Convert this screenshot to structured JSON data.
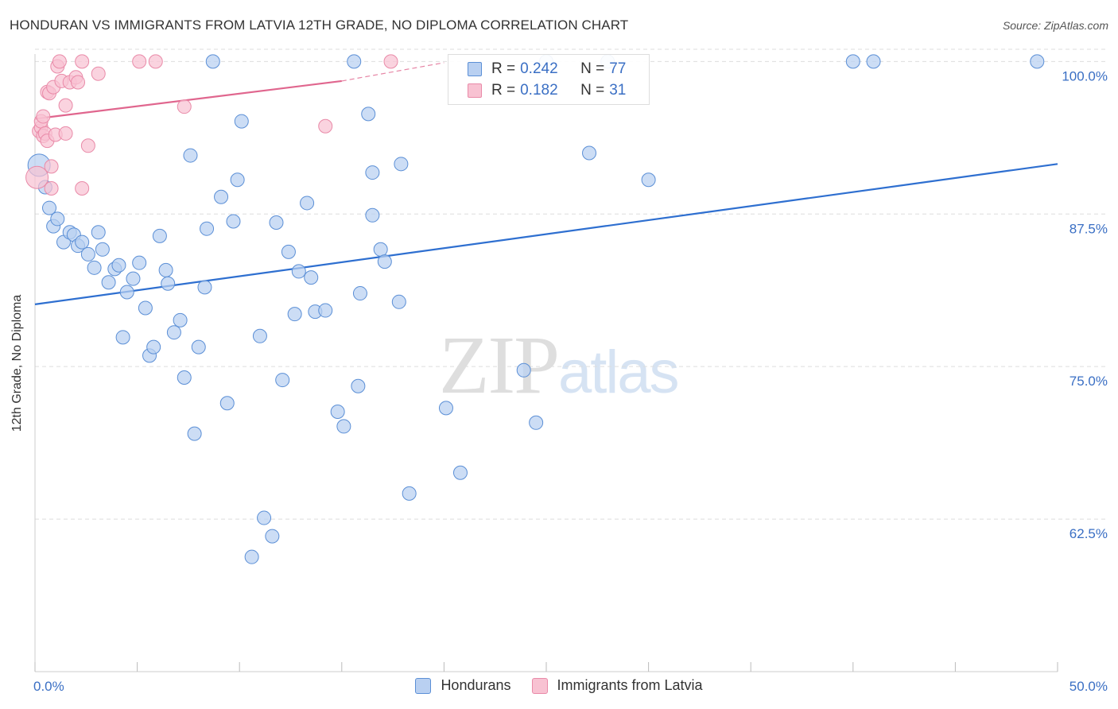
{
  "header": {
    "title": "HONDURAN VS IMMIGRANTS FROM LATVIA 12TH GRADE, NO DIPLOMA CORRELATION CHART",
    "source": "Source: ZipAtlas.com"
  },
  "watermark": {
    "zip": "ZIP",
    "atlas": "atlas"
  },
  "legend_top": {
    "rows": [
      {
        "r_label": "R =",
        "r_value": "0.242",
        "n_label": "N =",
        "n_value": "77"
      },
      {
        "r_label": "R =",
        "r_value": "0.182",
        "n_label": "N =",
        "n_value": "31"
      }
    ]
  },
  "legend_bottom": {
    "items": [
      "Hondurans",
      "Immigrants from Latvia"
    ]
  },
  "colors": {
    "blue_fill": "#b9d0f1",
    "blue_stroke": "#5b8fd6",
    "blue_line": "#2e6fd0",
    "pink_fill": "#f8c2d2",
    "pink_stroke": "#e98aa8",
    "pink_line": "#e0668e",
    "tick_label": "#3a6fc4",
    "grid": "#dddddd"
  },
  "chart_data": {
    "type": "scatter",
    "title": "HONDURAN VS IMMIGRANTS FROM LATVIA 12TH GRADE, NO DIPLOMA CORRELATION CHART",
    "xlabel": "",
    "ylabel": "12th Grade, No Diploma",
    "xlim": [
      0,
      50
    ],
    "ylim": [
      50,
      101
    ],
    "x_tick_labels": [
      "0.0%",
      "50.0%"
    ],
    "y_ticks": [
      62.5,
      75.0,
      87.5,
      100.0
    ],
    "y_tick_labels": [
      "62.5%",
      "75.0%",
      "87.5%",
      "100.0%"
    ],
    "grid": "horizontal dashed",
    "series": [
      {
        "name": "Hondurans",
        "r": 0.242,
        "n": 77,
        "trend": {
          "x": [
            0,
            50
          ],
          "y": [
            80.1,
            91.6
          ]
        },
        "points": [
          {
            "x": 0.2,
            "y": 91.5,
            "big": true
          },
          {
            "x": 0.5,
            "y": 89.7
          },
          {
            "x": 0.7,
            "y": 88.0
          },
          {
            "x": 0.9,
            "y": 86.5
          },
          {
            "x": 1.1,
            "y": 87.1
          },
          {
            "x": 1.4,
            "y": 85.2
          },
          {
            "x": 1.7,
            "y": 86.0
          },
          {
            "x": 1.9,
            "y": 85.8
          },
          {
            "x": 2.1,
            "y": 84.9
          },
          {
            "x": 2.3,
            "y": 85.2
          },
          {
            "x": 2.6,
            "y": 84.2
          },
          {
            "x": 2.9,
            "y": 83.1
          },
          {
            "x": 3.1,
            "y": 86.0
          },
          {
            "x": 3.3,
            "y": 84.6
          },
          {
            "x": 3.6,
            "y": 81.9
          },
          {
            "x": 3.9,
            "y": 83.0
          },
          {
            "x": 4.1,
            "y": 83.3
          },
          {
            "x": 4.3,
            "y": 77.4
          },
          {
            "x": 4.5,
            "y": 81.1
          },
          {
            "x": 4.8,
            "y": 82.2
          },
          {
            "x": 5.1,
            "y": 83.5
          },
          {
            "x": 5.4,
            "y": 79.8
          },
          {
            "x": 5.6,
            "y": 75.9
          },
          {
            "x": 5.8,
            "y": 76.6
          },
          {
            "x": 6.1,
            "y": 85.7
          },
          {
            "x": 6.4,
            "y": 82.9
          },
          {
            "x": 6.5,
            "y": 81.8
          },
          {
            "x": 6.8,
            "y": 77.8
          },
          {
            "x": 7.1,
            "y": 78.8
          },
          {
            "x": 7.3,
            "y": 74.1
          },
          {
            "x": 7.6,
            "y": 92.3
          },
          {
            "x": 7.8,
            "y": 69.5
          },
          {
            "x": 8.0,
            "y": 76.6
          },
          {
            "x": 8.3,
            "y": 81.5
          },
          {
            "x": 8.4,
            "y": 86.3
          },
          {
            "x": 8.7,
            "y": 100.0
          },
          {
            "x": 9.1,
            "y": 88.9
          },
          {
            "x": 9.4,
            "y": 72.0
          },
          {
            "x": 9.7,
            "y": 86.9
          },
          {
            "x": 9.9,
            "y": 90.3
          },
          {
            "x": 10.1,
            "y": 95.1
          },
          {
            "x": 10.6,
            "y": 59.4
          },
          {
            "x": 11.0,
            "y": 77.5
          },
          {
            "x": 11.2,
            "y": 62.6
          },
          {
            "x": 11.6,
            "y": 61.1
          },
          {
            "x": 11.8,
            "y": 86.8
          },
          {
            "x": 12.1,
            "y": 73.9
          },
          {
            "x": 12.4,
            "y": 84.4
          },
          {
            "x": 12.7,
            "y": 79.3
          },
          {
            "x": 12.9,
            "y": 82.8
          },
          {
            "x": 13.3,
            "y": 88.4
          },
          {
            "x": 13.5,
            "y": 82.3
          },
          {
            "x": 13.7,
            "y": 79.5
          },
          {
            "x": 14.2,
            "y": 79.6
          },
          {
            "x": 14.8,
            "y": 71.3
          },
          {
            "x": 15.1,
            "y": 70.1
          },
          {
            "x": 15.8,
            "y": 73.4
          },
          {
            "x": 15.9,
            "y": 81.0
          },
          {
            "x": 15.6,
            "y": 100.0
          },
          {
            "x": 16.3,
            "y": 95.7
          },
          {
            "x": 16.5,
            "y": 87.4
          },
          {
            "x": 16.5,
            "y": 90.9
          },
          {
            "x": 16.9,
            "y": 84.6
          },
          {
            "x": 17.1,
            "y": 83.6
          },
          {
            "x": 17.8,
            "y": 80.3
          },
          {
            "x": 17.9,
            "y": 91.6
          },
          {
            "x": 18.3,
            "y": 64.6
          },
          {
            "x": 20.1,
            "y": 71.6
          },
          {
            "x": 20.8,
            "y": 66.3
          },
          {
            "x": 23.9,
            "y": 74.7
          },
          {
            "x": 24.5,
            "y": 70.4
          },
          {
            "x": 25.0,
            "y": 100.0
          },
          {
            "x": 27.1,
            "y": 92.5
          },
          {
            "x": 28.0,
            "y": 100.0
          },
          {
            "x": 30.0,
            "y": 90.3
          },
          {
            "x": 40.0,
            "y": 100.0
          },
          {
            "x": 41.0,
            "y": 100.0
          },
          {
            "x": 49.0,
            "y": 100.0
          }
        ]
      },
      {
        "name": "Immigrants from Latvia",
        "r": 0.182,
        "n": 31,
        "trend": {
          "x": [
            0,
            15
          ],
          "y": [
            95.3,
            98.4
          ]
        },
        "trend_dashed_extension": {
          "x": [
            15,
            20
          ],
          "y": [
            98.4,
            99.9
          ]
        },
        "points": [
          {
            "x": 0.1,
            "y": 90.5,
            "big": true
          },
          {
            "x": 0.2,
            "y": 94.3
          },
          {
            "x": 0.3,
            "y": 94.6
          },
          {
            "x": 0.3,
            "y": 95.1
          },
          {
            "x": 0.4,
            "y": 95.5
          },
          {
            "x": 0.4,
            "y": 93.9
          },
          {
            "x": 0.5,
            "y": 94.1
          },
          {
            "x": 0.6,
            "y": 93.5
          },
          {
            "x": 0.6,
            "y": 97.5
          },
          {
            "x": 0.7,
            "y": 97.4
          },
          {
            "x": 0.8,
            "y": 91.4
          },
          {
            "x": 0.8,
            "y": 89.6
          },
          {
            "x": 0.9,
            "y": 97.9
          },
          {
            "x": 1.0,
            "y": 94.0
          },
          {
            "x": 1.1,
            "y": 99.6
          },
          {
            "x": 1.2,
            "y": 100.0
          },
          {
            "x": 1.3,
            "y": 98.4
          },
          {
            "x": 1.5,
            "y": 96.4
          },
          {
            "x": 1.5,
            "y": 94.1
          },
          {
            "x": 1.7,
            "y": 98.3
          },
          {
            "x": 2.0,
            "y": 98.7
          },
          {
            "x": 2.1,
            "y": 98.3
          },
          {
            "x": 2.3,
            "y": 89.6
          },
          {
            "x": 2.3,
            "y": 100.0
          },
          {
            "x": 2.6,
            "y": 93.1
          },
          {
            "x": 3.1,
            "y": 99.0
          },
          {
            "x": 5.1,
            "y": 100.0
          },
          {
            "x": 5.9,
            "y": 100.0
          },
          {
            "x": 7.3,
            "y": 96.3
          },
          {
            "x": 14.2,
            "y": 94.7
          },
          {
            "x": 17.4,
            "y": 100.0
          }
        ]
      }
    ]
  }
}
